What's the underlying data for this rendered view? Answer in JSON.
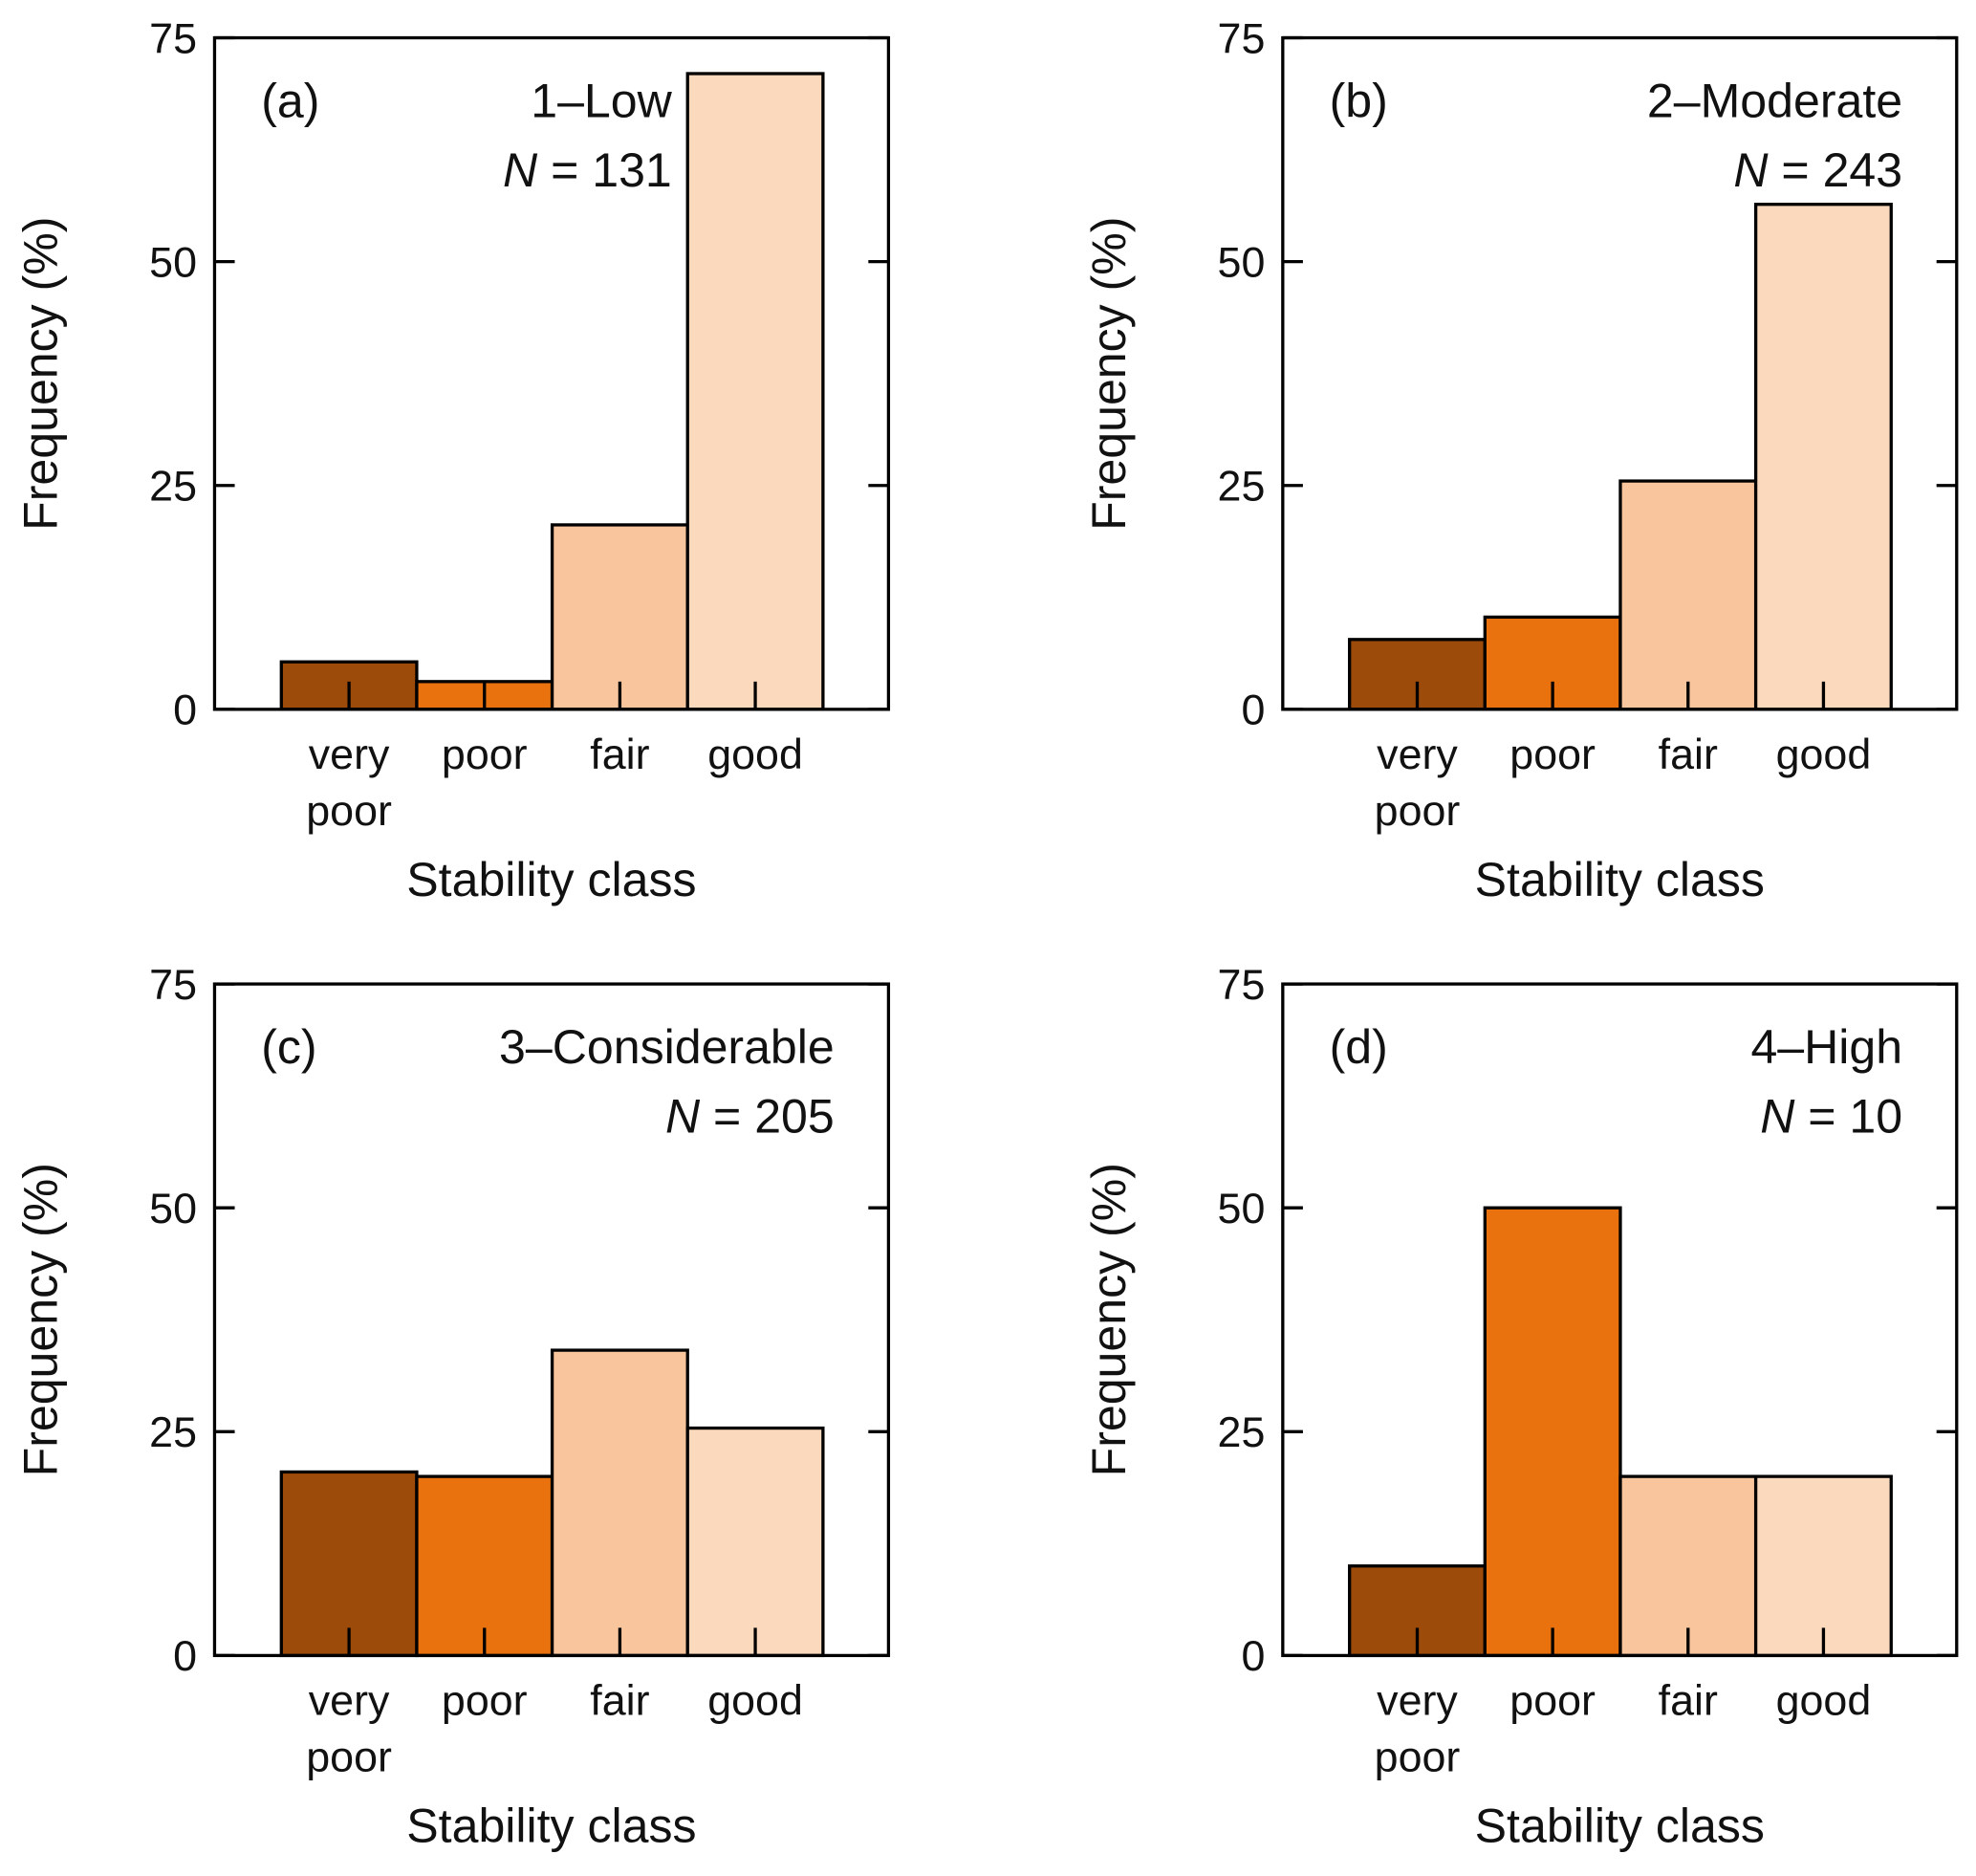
{
  "chart_data": [
    {
      "type": "bar",
      "panel_label": "(a)",
      "title": "1–Low",
      "n_label": "N",
      "n_text": " = 131",
      "categories": [
        [
          "very",
          "poor"
        ],
        [
          "poor"
        ],
        [
          "fair"
        ],
        [
          "good"
        ]
      ],
      "values": [
        5.3,
        3.1,
        20.6,
        71.0
      ],
      "xlabel": "Stability class",
      "ylabel": "Frequency (%)",
      "ylim": [
        0,
        75
      ],
      "yticks": [
        "0",
        "25",
        "50",
        "75"
      ]
    },
    {
      "type": "bar",
      "panel_label": "(b)",
      "title": "2–Moderate",
      "n_label": "N",
      "n_text": " = 243",
      "categories": [
        [
          "very",
          "poor"
        ],
        [
          "poor"
        ],
        [
          "fair"
        ],
        [
          "good"
        ]
      ],
      "values": [
        7.8,
        10.3,
        25.5,
        56.4
      ],
      "xlabel": "Stability class",
      "ylabel": "Frequency (%)",
      "ylim": [
        0,
        75
      ],
      "yticks": [
        "0",
        "25",
        "50",
        "75"
      ]
    },
    {
      "type": "bar",
      "panel_label": "(c)",
      "title": "3–Considerable",
      "n_label": "N",
      "n_text": " = 205",
      "categories": [
        [
          "very",
          "poor"
        ],
        [
          "poor"
        ],
        [
          "fair"
        ],
        [
          "good"
        ]
      ],
      "values": [
        20.5,
        20.0,
        34.1,
        25.4
      ],
      "xlabel": "Stability class",
      "ylabel": "Frequency (%)",
      "ylim": [
        0,
        75
      ],
      "yticks": [
        "0",
        "25",
        "50",
        "75"
      ]
    },
    {
      "type": "bar",
      "panel_label": "(d)",
      "title": "4–High",
      "n_label": "N",
      "n_text": " = 10",
      "categories": [
        [
          "very",
          "poor"
        ],
        [
          "poor"
        ],
        [
          "fair"
        ],
        [
          "good"
        ]
      ],
      "values": [
        10,
        50,
        20,
        20
      ],
      "xlabel": "Stability class",
      "ylabel": "Frequency (%)",
      "ylim": [
        0,
        75
      ],
      "yticks": [
        "0",
        "25",
        "50",
        "75"
      ]
    }
  ],
  "colors": [
    "#9c4b0a",
    "#e9720f",
    "#f8c59c",
    "#fad9bc"
  ]
}
